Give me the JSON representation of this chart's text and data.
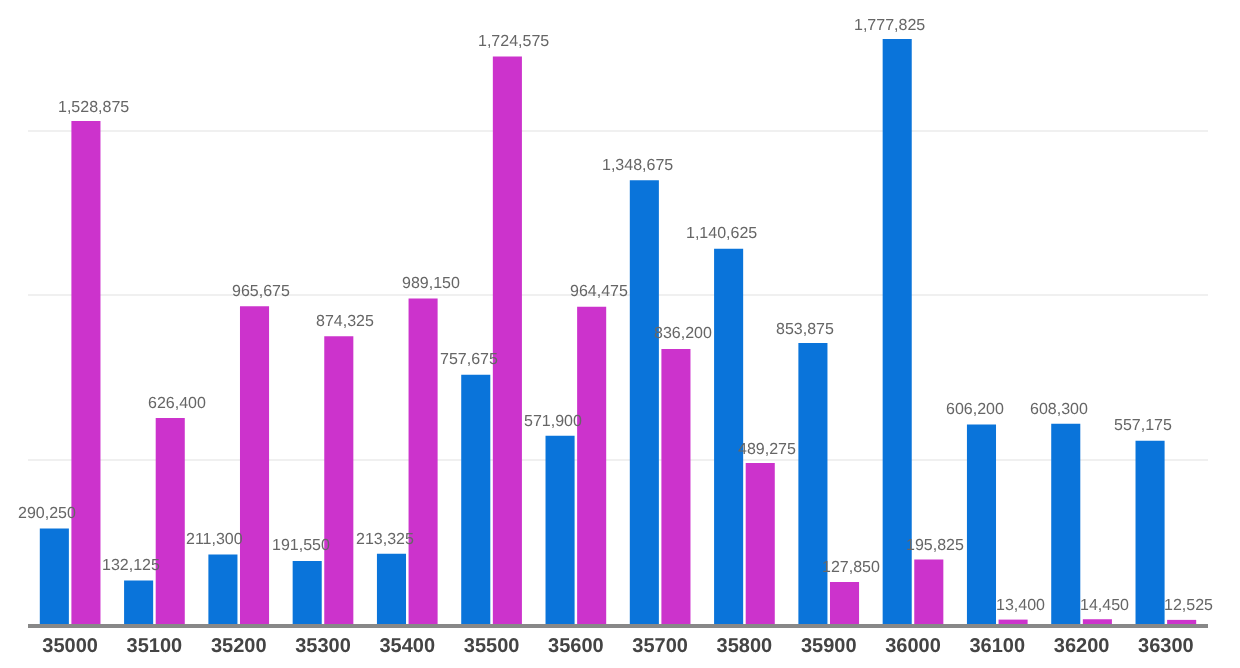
{
  "chart_data": {
    "type": "bar",
    "categories": [
      "35000",
      "35100",
      "35200",
      "35300",
      "35400",
      "35500",
      "35600",
      "35700",
      "35800",
      "35900",
      "36000",
      "36100",
      "36200",
      "36300"
    ],
    "series": [
      {
        "color": "#0a74da",
        "values": [
          290250,
          132125,
          211300,
          191550,
          213325,
          757675,
          571900,
          1348675,
          1140625,
          853875,
          1777825,
          606200,
          608300,
          557175
        ],
        "value_labels": [
          "290,250",
          "132,125",
          "211,300",
          "191,550",
          "213,325",
          "757,675",
          "571,900",
          "1,348,675",
          "1,140,625",
          "853,875",
          "1,777,825",
          "606,200",
          "608,300",
          "557,175"
        ]
      },
      {
        "color": "#cc33cc",
        "values": [
          1528875,
          626400,
          965675,
          874325,
          989150,
          1724575,
          964475,
          836200,
          489275,
          127850,
          195825,
          13400,
          14450,
          12525
        ],
        "value_labels": [
          "1,528,875",
          "626,400",
          "965,675",
          "874,325",
          "989,150",
          "1,724,575",
          "964,475",
          "836,200",
          "489,275",
          "127,850",
          "195,825",
          "13,400",
          "14,450",
          "12,525"
        ]
      }
    ],
    "grid": "y",
    "tick_labels": "x"
  }
}
